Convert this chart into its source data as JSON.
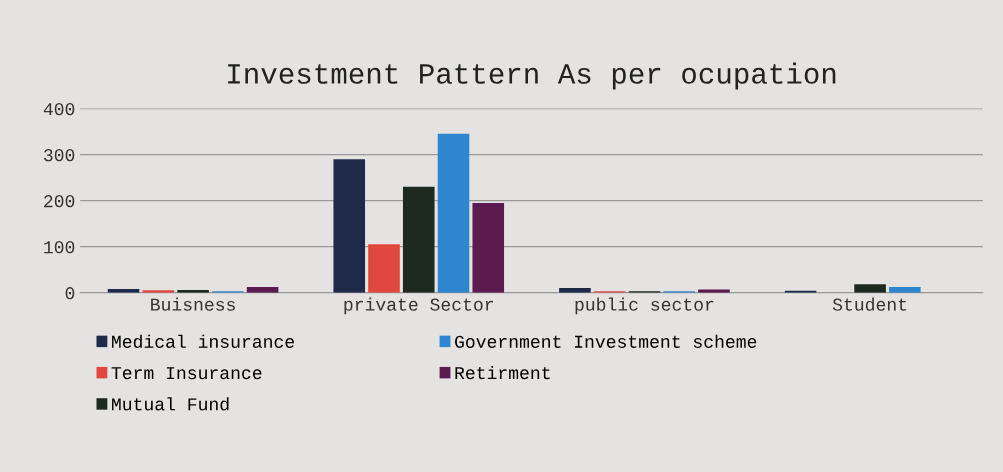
{
  "chart_data": {
    "type": "bar",
    "title": "Investment Pattern As per ocupation",
    "categories": [
      "Buisness",
      "private Sector",
      "public sector",
      "Student"
    ],
    "series": [
      {
        "name": "Medical insurance",
        "color": "#1f2a4a",
        "values": [
          8,
          290,
          10,
          4
        ]
      },
      {
        "name": "Term Insurance",
        "color": "#e0473f",
        "values": [
          5,
          105,
          3,
          0
        ]
      },
      {
        "name": "Mutual Fund",
        "color": "#1e2a20",
        "values": [
          6,
          230,
          3,
          18
        ]
      },
      {
        "name": "Government Investment scheme",
        "color": "#2f86d0",
        "values": [
          3,
          345,
          3,
          12
        ]
      },
      {
        "name": "Retirment",
        "color": "#5c1a4f",
        "values": [
          12,
          195,
          7,
          0
        ]
      }
    ],
    "ylim": [
      0,
      400
    ],
    "yticks": [
      0,
      100,
      200,
      300,
      400
    ],
    "grid": "y",
    "legend": "bottom"
  }
}
